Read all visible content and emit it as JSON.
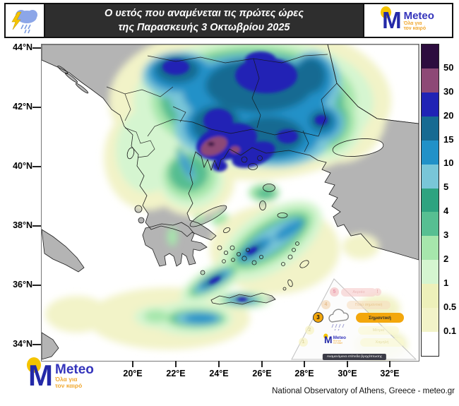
{
  "header": {
    "title_line1": "Ο υετός που αναμένεται τις πρώτες ώρες",
    "title_line2": "της Παρασκευής 3 Οκτωβρίου 2025"
  },
  "logo": {
    "letter": "M",
    "name": "Meteo",
    "tagline1": "Όλα για",
    "tagline2": "τον καιρό"
  },
  "axes": {
    "lat": [
      "44°N",
      "42°N",
      "40°N",
      "38°N",
      "36°N",
      "34°N"
    ],
    "lon": [
      "20°E",
      "22°E",
      "24°E",
      "26°E",
      "28°E",
      "30°E",
      "32°E"
    ]
  },
  "colorbar": {
    "description": "precipitation scale, mm",
    "labels": [
      "50",
      "30",
      "20",
      "15",
      "10",
      "5",
      "4",
      "3",
      "2",
      "1",
      "0.5",
      "0.1"
    ],
    "colors": [
      "#2d0d3f",
      "#8d4976",
      "#2023b5",
      "#176a92",
      "#2191c8",
      "#79c6d8",
      "#2ea380",
      "#57bf92",
      "#a6e6ac",
      "#d5f5d0",
      "#edf0ba",
      "#f2f3c8",
      "#ffffff"
    ]
  },
  "risk_pyramid": {
    "levels": [
      {
        "n": "5",
        "label": "Ακραία"
      },
      {
        "n": "4",
        "label": "Πολύ σημαντική"
      },
      {
        "n": "3",
        "label": "Σημαντική"
      },
      {
        "n": "2",
        "label": "Μέτρια"
      },
      {
        "n": "1",
        "label": "Χαμηλή"
      }
    ],
    "active_level": "3",
    "badge": "!",
    "caption": "Αναμενόμενα επίπεδα βροχόπτωσης"
  },
  "footer": {
    "attribution": "National Observatory of Athens, Greece - meteo.gr"
  },
  "palette": {
    "land": "#b4b4b4",
    "sea": "#ffffff"
  }
}
